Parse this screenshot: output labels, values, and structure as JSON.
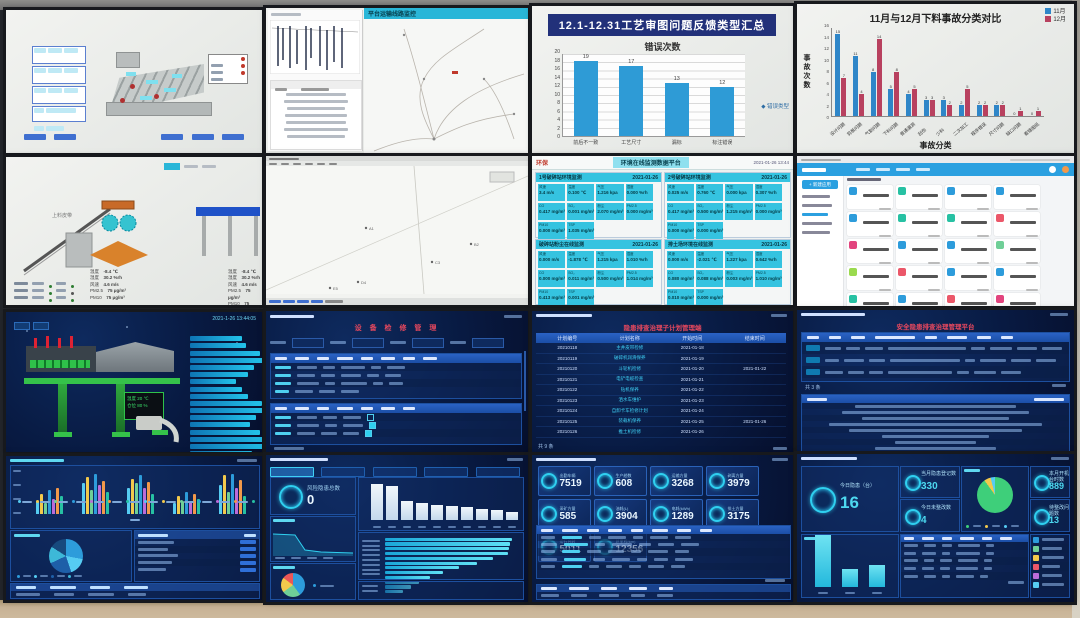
{
  "chart_data": [
    {
      "type": "bar",
      "banner": "12.1-12.31工艺审图问题反馈类型汇总",
      "title": "错误次数",
      "categories": [
        "前后不一致",
        "工艺尺寸",
        "漏标",
        "标注错误"
      ],
      "values": [
        19,
        17,
        13,
        12
      ],
      "ylim": [
        0,
        20
      ],
      "ytick_step": 2,
      "legend": "◆ 错误类型",
      "bar_color": "#2e9bd6"
    },
    {
      "type": "bar",
      "title": "11月与12月下料事故分类对比",
      "categories": [
        "设计问题",
        "剪板问题",
        "气割问题",
        "下料问题",
        "普通漏洞",
        "刮伤",
        "少料",
        "二次加工",
        "程序错误",
        "尺寸问题",
        "缺口问题",
        "看错图纸"
      ],
      "series": [
        {
          "name": "11月",
          "color": "#2f86c8",
          "values": [
            15,
            11,
            8,
            5,
            4,
            3,
            3,
            2,
            2,
            2,
            0,
            0
          ]
        },
        {
          "name": "12月",
          "color": "#b8415f",
          "values": [
            7,
            4,
            14,
            8,
            5,
            3,
            2,
            5,
            2,
            2,
            1,
            1
          ]
        }
      ],
      "ylim": [
        0,
        16
      ],
      "ylabel": "事故次数",
      "xlabel": "事故分类",
      "legend_position": "top-right"
    }
  ],
  "s12": {
    "map_title": "平台运输线路监控"
  },
  "s21": {
    "metrics": [
      {
        "l": "温度",
        "v": "-8.4 ℃"
      },
      {
        "l": "湿度",
        "v": "30.2 %rh"
      },
      {
        "l": "风速",
        "v": "4.6 m/s"
      },
      {
        "l": "PM2.5",
        "v": "75 μg/m³"
      },
      {
        "l": "PM10",
        "v": "75 μg/m³"
      }
    ]
  },
  "s23": {
    "logo": "环保",
    "title": "环境在线监测数据平台",
    "time": "2021-01-26 13:44",
    "panels": [
      {
        "title": "1号破碎站环境监测",
        "date": "2021-01-26",
        "tiles": [
          {
            "l": "风速",
            "v": "3.4 m/s"
          },
          {
            "l": "温度",
            "v": "0.100 ℃"
          },
          {
            "l": "气压",
            "v": "1.216 kpa"
          },
          {
            "l": "湿度",
            "v": "0.000 %rh"
          },
          {
            "l": "CO",
            "v": "0.417 mg/m³"
          },
          {
            "l": "SO₂",
            "v": "0.001 mg/m³"
          },
          {
            "l": "粉尘",
            "v": "2.070 mg/m³"
          },
          {
            "l": "PM2.5",
            "v": "0.000 mg/m³"
          },
          {
            "l": "PM10",
            "v": "0.000 mg/m³"
          },
          {
            "l": "TSP",
            "v": "1.035 mg/m³"
          }
        ]
      },
      {
        "title": "2号破碎站环境监测",
        "date": "2021-01-26",
        "tiles": [
          {
            "l": "风速",
            "v": "0.025 m/s"
          },
          {
            "l": "温度",
            "v": "0.760 ℃"
          },
          {
            "l": "气压",
            "v": "0.000 kpa"
          },
          {
            "l": "湿度",
            "v": "0.307 %rh"
          },
          {
            "l": "CO",
            "v": "0.417 mg/m³"
          },
          {
            "l": "SO₂",
            "v": "0.500 mg/m³"
          },
          {
            "l": "粉尘",
            "v": "1.215 mg/m³"
          },
          {
            "l": "PM2.5",
            "v": "0.000 mg/m³"
          },
          {
            "l": "PM10",
            "v": "0.000 mg/m³"
          },
          {
            "l": "TSP",
            "v": "0.000 mg/m³"
          }
        ]
      },
      {
        "title": "破碎站粉尘在线监测",
        "date": "2021-01-26",
        "tiles": [
          {
            "l": "风速",
            "v": "0.000 m/s"
          },
          {
            "l": "温度",
            "v": "-1.878 ℃"
          },
          {
            "l": "气压",
            "v": "1.215 kpa"
          },
          {
            "l": "湿度",
            "v": "1.010 %rh"
          },
          {
            "l": "CO",
            "v": "0.000 mg/m³"
          },
          {
            "l": "SO₂",
            "v": "0.011 mg/m³"
          },
          {
            "l": "粉尘",
            "v": "0.500 mg/m³"
          },
          {
            "l": "PM2.5",
            "v": "1.014 mg/m³"
          },
          {
            "l": "PM10",
            "v": "0.413 mg/m³"
          },
          {
            "l": "TSP",
            "v": "0.001 mg/m³"
          }
        ]
      },
      {
        "title": "排土场环境在线监测",
        "date": "2021-01-26",
        "tiles": [
          {
            "l": "风速",
            "v": "0.000 m/s"
          },
          {
            "l": "温度",
            "v": "-2.021 ℃"
          },
          {
            "l": "气压",
            "v": "1.227 kpa"
          },
          {
            "l": "湿度",
            "v": "0.642 %rh"
          },
          {
            "l": "CO",
            "v": "0.080 mg/m³"
          },
          {
            "l": "SO₂",
            "v": "0.088 mg/m³"
          },
          {
            "l": "粉尘",
            "v": "0.003 mg/m³"
          },
          {
            "l": "PM2.5",
            "v": "1.010 mg/m³"
          },
          {
            "l": "PM10",
            "v": "0.010 mg/m³"
          },
          {
            "l": "TSP",
            "v": "0.000 mg/m³"
          }
        ]
      }
    ]
  },
  "s24": {
    "new_button": "+ 新建应用",
    "card_colors": [
      "#2d9cdb",
      "#27c1a3",
      "#2d9cdb",
      "#2d9cdb",
      "#2d9cdb",
      "#27c1a3",
      "#27c1a3",
      "#eb5769",
      "#e2447e",
      "#2d9cdb",
      "#2d9cdb",
      "#6fcf97",
      "#9ada4e",
      "#eb5769",
      "#2d9cdb",
      "#2d9cdb",
      "#27c1a3",
      "#2d9cdb",
      "#eb5769",
      "#e2447e",
      "#c94f7c",
      "#e2447e",
      "#eb5769",
      "#e2447e",
      "#6fcf97"
    ]
  },
  "s31": {
    "datetime": "2021-1-26 13:44:05",
    "sign_rows": [
      "温度 20 ℃",
      "仓位 80 %"
    ],
    "button_widths": [
      52,
      56,
      70,
      76,
      64,
      58,
      46,
      52,
      58,
      72,
      78,
      66,
      60,
      70,
      84,
      80,
      62
    ]
  },
  "s32": {
    "title": "设 备 检 修 管 理"
  },
  "s33": {
    "title": "隐患排查治理子计划管理端",
    "headers": [
      "计划编号",
      "计划名称",
      "开始时间",
      "结束时间"
    ],
    "rows": [
      {
        "no": "20210118",
        "name": "主井皮带检修",
        "d1": "2021-01-18",
        "d2": ""
      },
      {
        "no": "20210119",
        "name": "破碎机润滑保养",
        "d1": "2021-01-19",
        "d2": ""
      },
      {
        "no": "20210120",
        "name": "斗轮机检修",
        "d1": "2021-01-20",
        "d2": "2021-01-22"
      },
      {
        "no": "20210121",
        "name": "电铲电缆检查",
        "d1": "2021-01-21",
        "d2": ""
      },
      {
        "no": "20210122",
        "name": "钻机保养",
        "d1": "2021-01-22",
        "d2": ""
      },
      {
        "no": "20210123",
        "name": "洒水车维护",
        "d1": "2021-01-23",
        "d2": ""
      },
      {
        "no": "20210124",
        "name": "自卸卡车检修计划",
        "d1": "2021-01-24",
        "d2": ""
      },
      {
        "no": "20210125",
        "name": "装载机保养",
        "d1": "2021-01-25",
        "d2": "2021-01-26"
      },
      {
        "no": "20210126",
        "name": "推土机检修",
        "d1": "2021-01-26",
        "d2": ""
      }
    ],
    "pagination": "共 9 条"
  },
  "s34": {
    "title": "安全隐患排查治理管理平台",
    "pagination": "共 3 条"
  },
  "s41": {
    "groups": [
      [
        30,
        45,
        25,
        55,
        35,
        60,
        40
      ],
      [
        70,
        85,
        55,
        90,
        65,
        75,
        50
      ],
      [
        60,
        80,
        70,
        88,
        58,
        72,
        45
      ],
      [
        25,
        40,
        30,
        50,
        28,
        45,
        35
      ],
      [
        65,
        88,
        50,
        92,
        60,
        78,
        42
      ]
    ],
    "palette": [
      "#56ccf2",
      "#f2c94c",
      "#6fcf97",
      "#2d9cdb",
      "#bb6bd9",
      "#f2994a",
      "#27c1a3"
    ],
    "legend": [
      "#56ccf2",
      "#f2c94c",
      "#6fcf97",
      "#2d9cdb",
      "#bb6bd9",
      "#f2994a",
      "#27c1a3",
      "#56ccf2",
      "#f2c94c",
      "#6fcf97",
      "#2d9cdb",
      "#bb6bd9",
      "#f2994a",
      "#27c1a3"
    ],
    "pie": [
      {
        "c": "#2d9cdb",
        "p": 28
      },
      {
        "c": "#56ccf2",
        "p": 17
      },
      {
        "c": "#1e5fa8",
        "p": 23
      },
      {
        "c": "#3db8d8",
        "p": 16
      },
      {
        "c": "#174a7e",
        "p": 16
      }
    ]
  },
  "s42": {
    "gauge_label": "风险隐患总数",
    "gauge_value": "0",
    "bars": [
      95,
      90,
      50,
      46,
      40,
      36,
      33,
      30,
      26,
      22
    ],
    "hbars": [
      96,
      95,
      94,
      93,
      82,
      70,
      56,
      44,
      34,
      26,
      20,
      14
    ],
    "pie": [
      {
        "c": "#2d9cdb",
        "p": 40
      },
      {
        "c": "#6fcf97",
        "p": 25
      },
      {
        "c": "#f2c94c",
        "p": 20
      },
      {
        "c": "#eb5757",
        "p": 15
      }
    ]
  },
  "s43": {
    "kpis": [
      {
        "label": "出勤车辆",
        "value": "7519"
      },
      {
        "label": "生产趟数",
        "value": "608"
      },
      {
        "label": "运输方量",
        "value": "3268"
      },
      {
        "label": "剥离方量",
        "value": "3979"
      },
      {
        "label": "采矿方量",
        "value": "585"
      },
      {
        "label": "油耗(L)",
        "value": "3904"
      },
      {
        "label": "电耗(kWh)",
        "value": "1289"
      },
      {
        "label": "排土方量",
        "value": "3175"
      },
      {
        "label": "运行台时",
        "value": "5011"
      },
      {
        "label": "总里程(km)",
        "value": "12356"
      }
    ]
  },
  "s44": {
    "kpi_main": {
      "label": "今日隐患（台）",
      "value": "16"
    },
    "kpis": [
      {
        "label": "当月隐患登记数",
        "value": "330"
      },
      {
        "label": "今日未整改数",
        "value": "4"
      },
      {
        "label": "本月开机台时数",
        "value": "889"
      },
      {
        "label": "待整改问题数",
        "value": "13"
      }
    ],
    "bars": [
      {
        "h": 52
      },
      {
        "h": 18
      },
      {
        "h": 22
      }
    ],
    "pie": [
      {
        "c": "#3ecf7a",
        "p": 90
      },
      {
        "c": "#f2c94c",
        "p": 6
      },
      {
        "c": "#56ccf2",
        "p": 4
      }
    ]
  }
}
